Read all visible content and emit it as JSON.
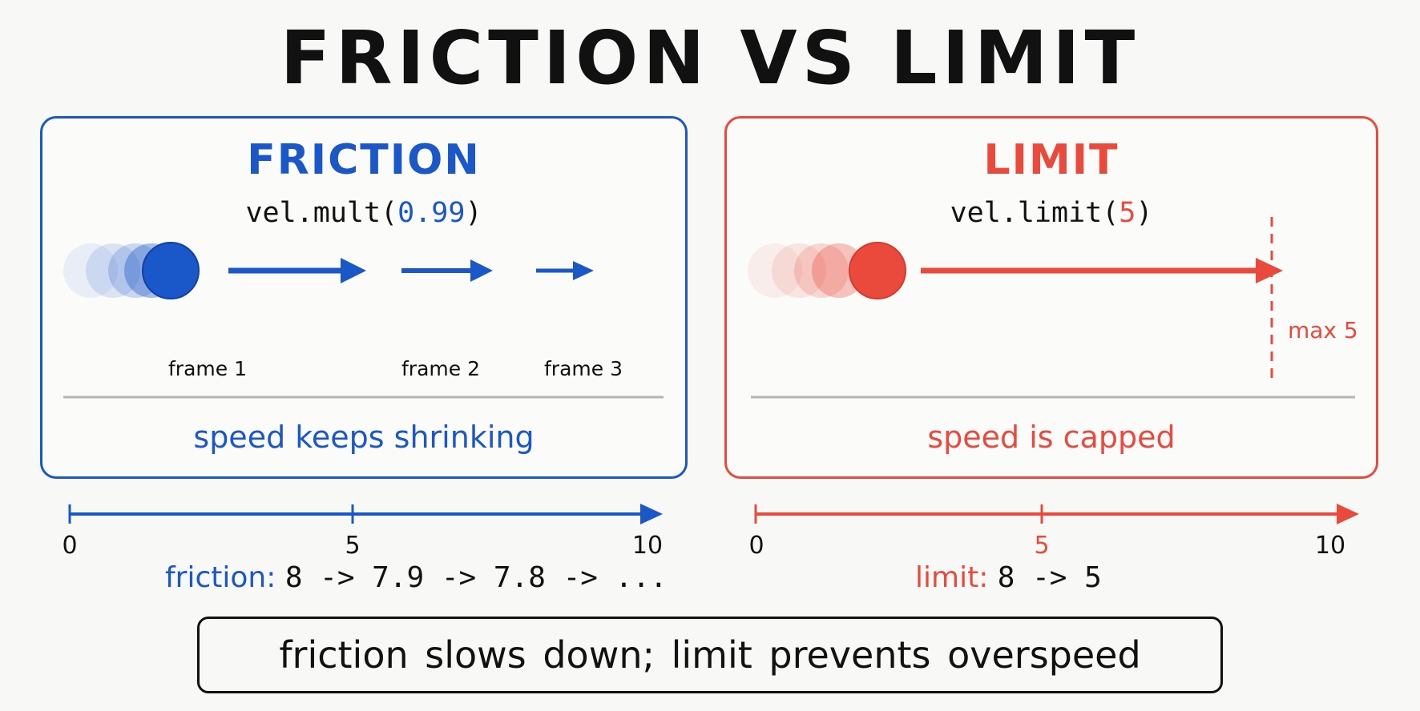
{
  "title": "FRICTION VS LIMIT",
  "colors": {
    "friction": "#1a57c8",
    "limit": "#ea4a3c",
    "text": "#111111",
    "divider": "#b5b5b8"
  },
  "friction_panel": {
    "title": "FRICTION",
    "code_prefix": "vel.mult(",
    "code_value": "0.99",
    "code_suffix": ")",
    "frame_labels": [
      "frame 1",
      "frame 2",
      "frame 3"
    ],
    "caption": "speed keeps shrinking",
    "arrow_lengths": [
      8,
      5,
      3
    ]
  },
  "limit_panel": {
    "title": "LIMIT",
    "code_prefix": "vel.limit(",
    "code_value": "5",
    "code_suffix": ")",
    "max_label": "max 5",
    "caption": "speed is capped"
  },
  "friction_scale": {
    "ticks": [
      "0",
      "5",
      "10"
    ],
    "key": "friction:",
    "values": "8 -> 7.9 -> 7.8 -> ..."
  },
  "limit_scale": {
    "ticks": [
      "0",
      "5",
      "10"
    ],
    "key": "limit:",
    "values": "8 -> 5"
  },
  "summary": "friction slows down; limit prevents overspeed"
}
